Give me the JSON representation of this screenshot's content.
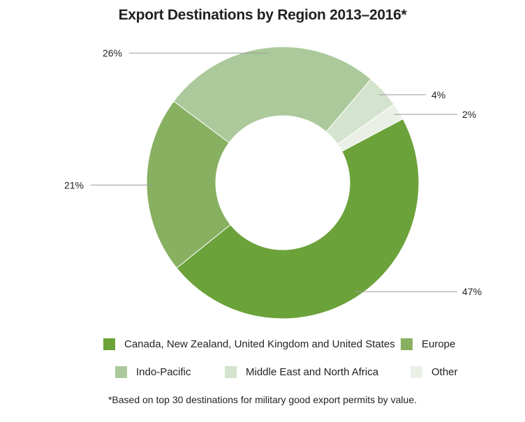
{
  "chart_data": {
    "type": "pie",
    "title": "Export Destinations by Region 2013–2016*",
    "donut": true,
    "slices": [
      {
        "name": "Canada, New Zealand, United Kingdom and United States",
        "value": 47,
        "label": "47%",
        "color": "#6ca23a"
      },
      {
        "name": "Europe",
        "value": 21,
        "label": "21%",
        "color": "#87b061"
      },
      {
        "name": "Indo-Pacific",
        "value": 26,
        "label": "26%",
        "color": "#abc99b"
      },
      {
        "name": "Middle East and North Africa",
        "value": 4,
        "label": "4%",
        "color": "#d4e3cd"
      },
      {
        "name": "Other",
        "value": 2,
        "label": "2%",
        "color": "#eaf0e6"
      }
    ],
    "legend_position": "bottom",
    "footnote": "*Based on top 30 destinations for military good export permits by value."
  }
}
